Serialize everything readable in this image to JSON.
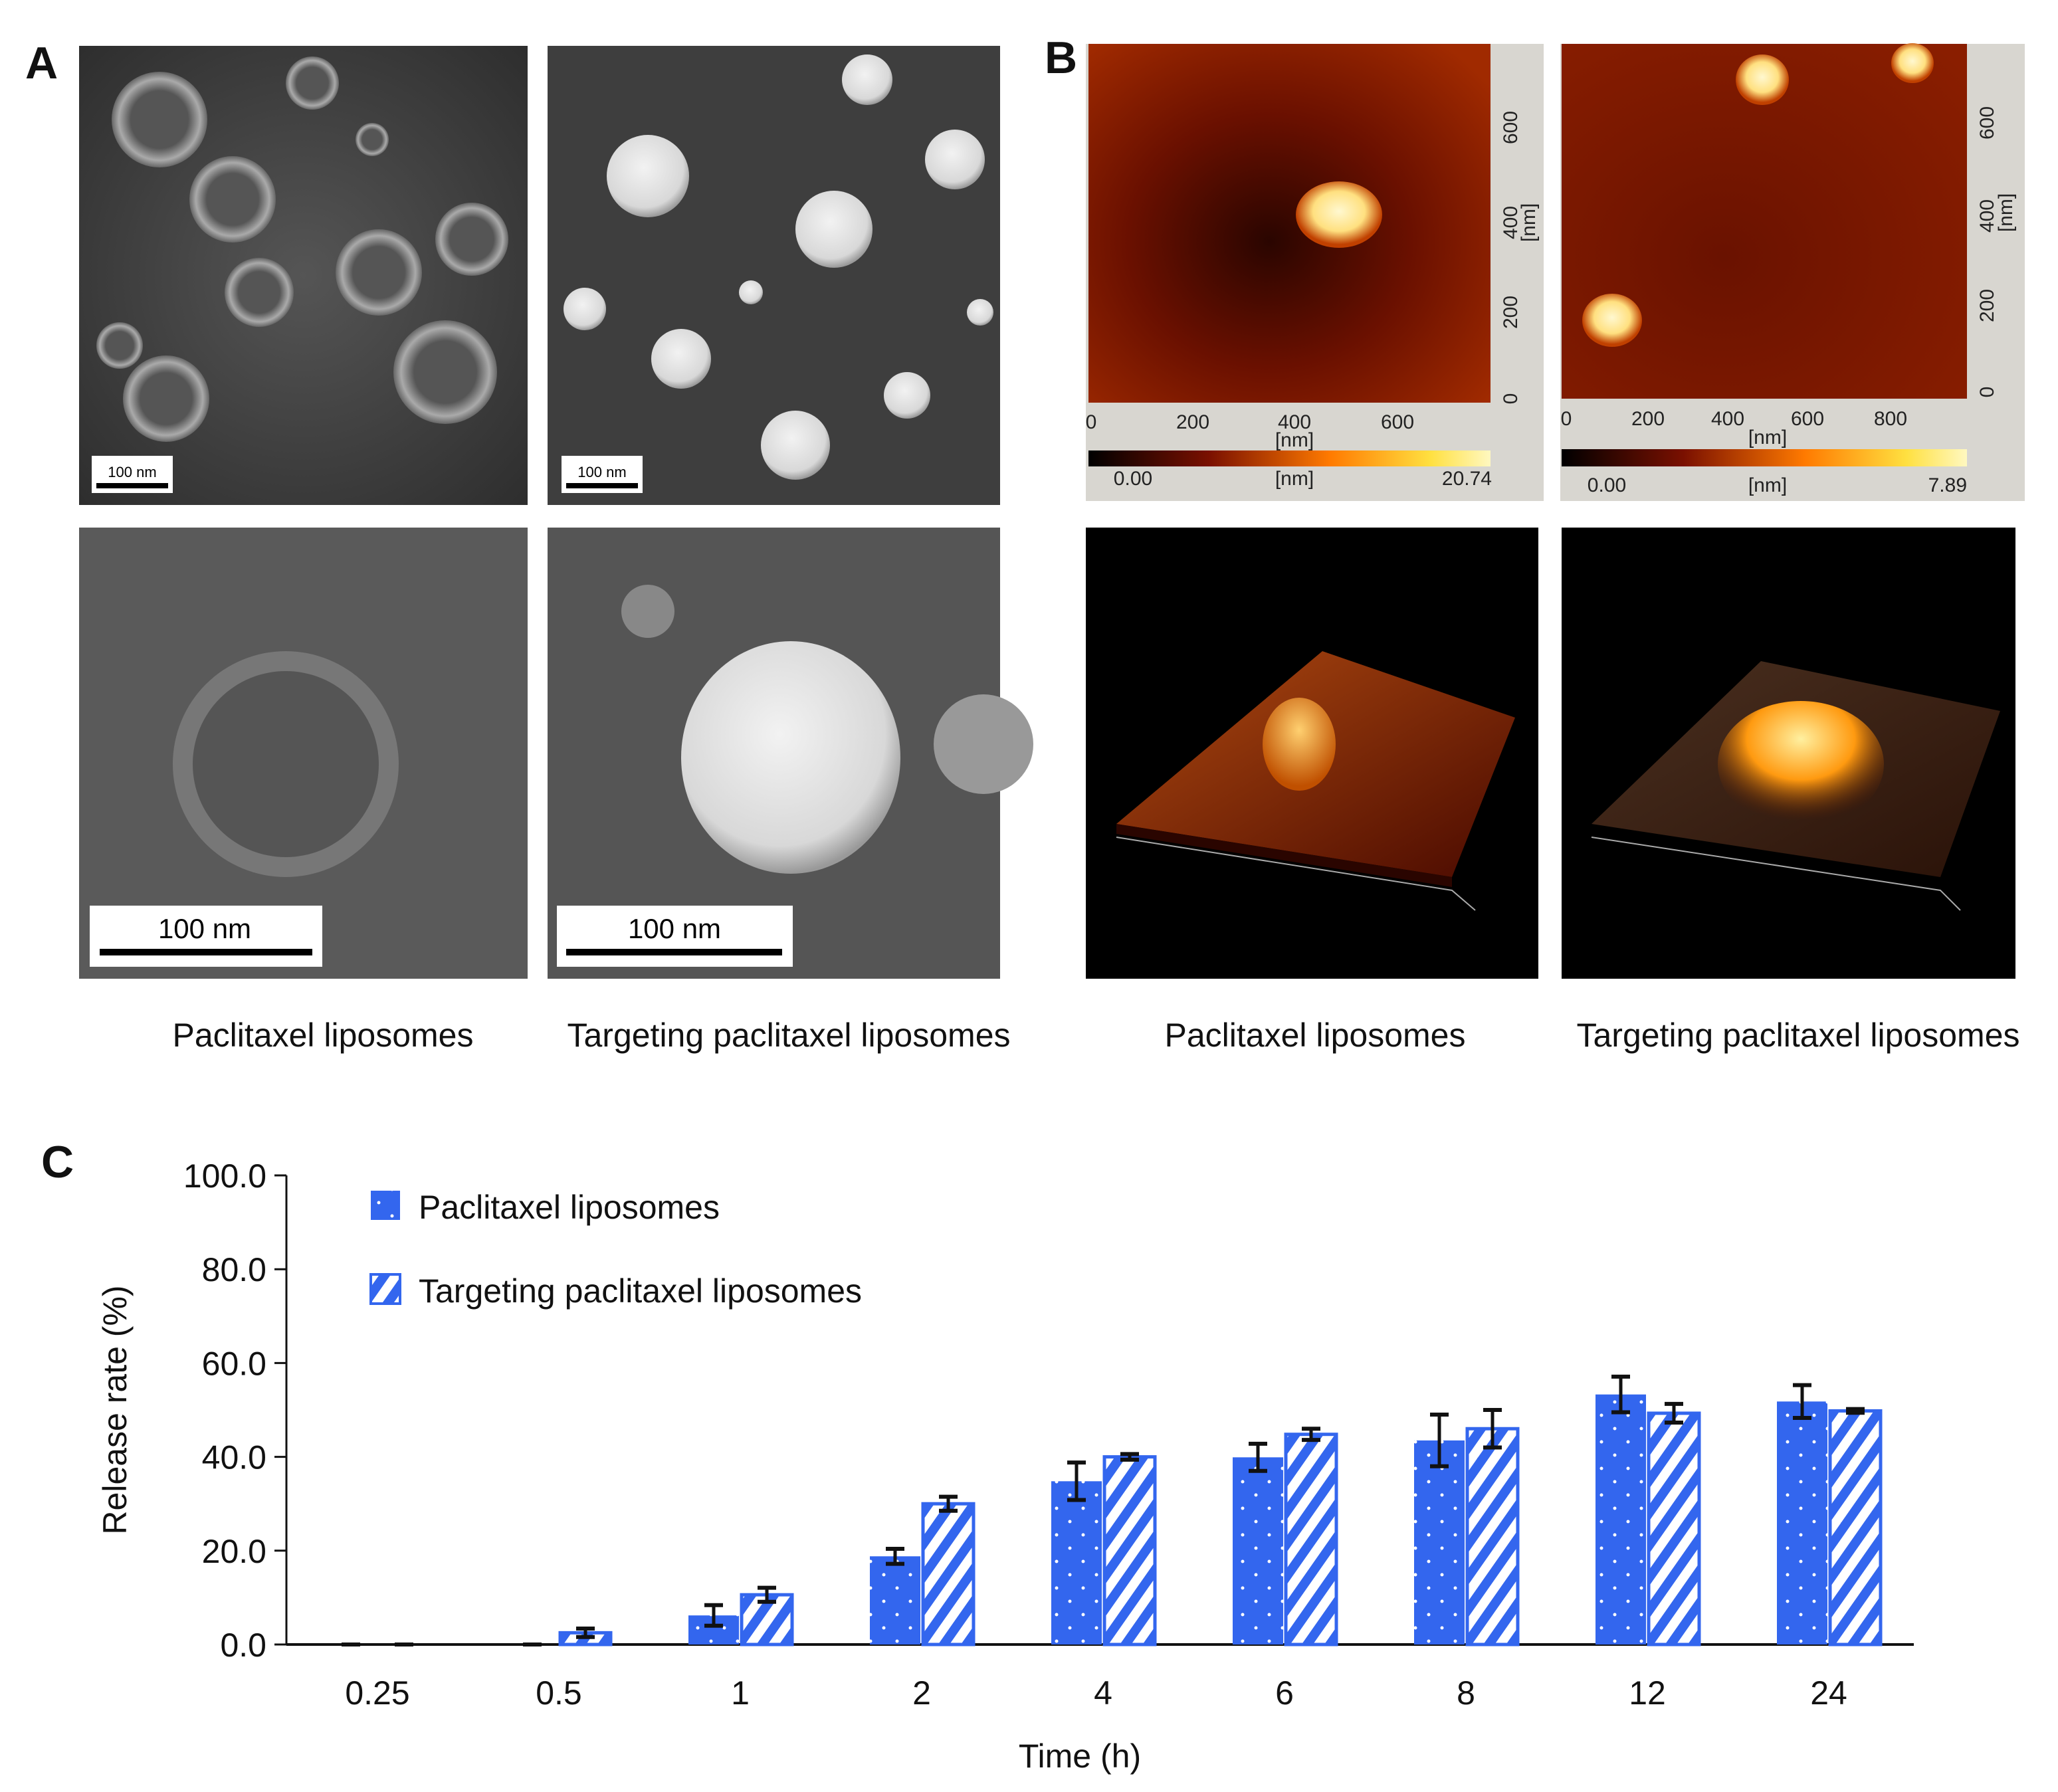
{
  "panels": {
    "A": {
      "label": "A",
      "scale_bar": "100 nm",
      "captions": [
        "Paclitaxel liposomes",
        "Targeting paclitaxel liposomes"
      ]
    },
    "B": {
      "label": "B",
      "captions": [
        "Paclitaxel liposomes",
        "Targeting paclitaxel liposomes"
      ],
      "afm_left": {
        "x_ticks": [
          "0",
          "200",
          "400",
          "600"
        ],
        "y_ticks": [
          "0",
          "200",
          "400",
          "600"
        ],
        "unit": "[nm]",
        "cbar_min": "0.00",
        "cbar_max": "20.74"
      },
      "afm_right": {
        "x_ticks": [
          "0",
          "200",
          "400",
          "600",
          "800"
        ],
        "y_ticks": [
          "0",
          "200",
          "400",
          "600"
        ],
        "unit": "[nm]",
        "cbar_min": "0.00",
        "cbar_max": "7.89"
      }
    },
    "C": {
      "label": "C"
    }
  },
  "chart_data": {
    "type": "bar",
    "xlabel": "Time (h)",
    "ylabel": "Release rate (%)",
    "ylim": [
      0,
      100
    ],
    "y_ticks": [
      "0.0",
      "20.0",
      "40.0",
      "60.0",
      "80.0",
      "100.0"
    ],
    "categories": [
      "0.25",
      "0.5",
      "1",
      "2",
      "4",
      "6",
      "8",
      "12",
      "24"
    ],
    "legend_position": "top-left",
    "series": [
      {
        "name": "Paclitaxel liposomes",
        "pattern": "dots",
        "color": "#3366ee",
        "values": [
          0,
          0,
          6.2,
          18.8,
          34.8,
          39.9,
          43.5,
          53.3,
          51.8
        ],
        "errors": [
          0,
          0,
          2.2,
          1.6,
          4.0,
          2.9,
          5.5,
          3.8,
          3.5
        ]
      },
      {
        "name": "Targeting paclitaxel liposomes",
        "pattern": "stripes",
        "color": "#3366ee",
        "values": [
          0,
          2.5,
          10.6,
          30.0,
          40.0,
          44.8,
          46.0,
          49.3,
          49.8
        ],
        "errors": [
          0,
          0.9,
          1.5,
          1.5,
          0.6,
          1.2,
          4.0,
          2.0,
          0.4
        ]
      }
    ]
  }
}
